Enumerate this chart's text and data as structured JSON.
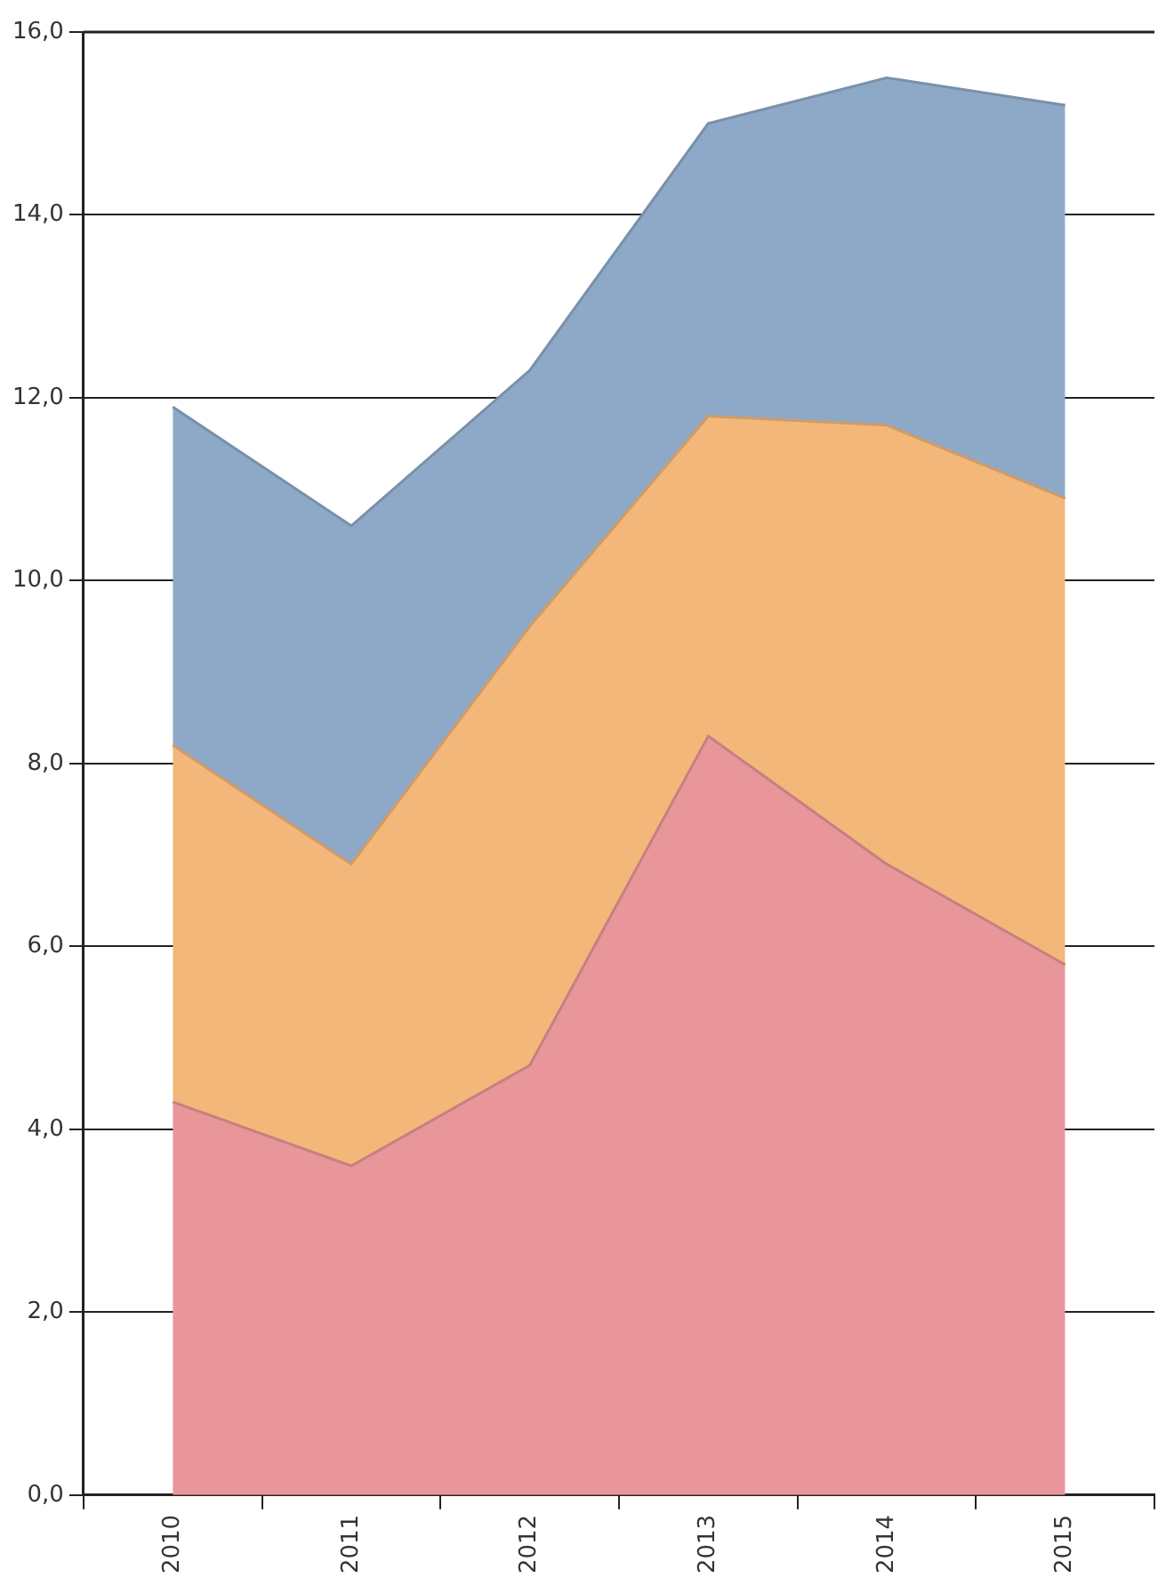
{
  "chart_data": {
    "type": "area",
    "stacked": true,
    "categories": [
      "2010",
      "2011",
      "2012",
      "2013",
      "2014",
      "2015"
    ],
    "series": [
      {
        "color": "#e8969a",
        "values": [
          4.3,
          3.6,
          4.7,
          8.3,
          6.9,
          5.8
        ]
      },
      {
        "color": "#f3b779",
        "values": [
          3.9,
          3.3,
          4.8,
          3.5,
          4.8,
          5.1
        ]
      },
      {
        "color": "#8ea9c8",
        "values": [
          3.7,
          3.7,
          2.8,
          3.2,
          3.8,
          4.3
        ]
      }
    ],
    "ylim": [
      0,
      16
    ],
    "yticks": [
      {
        "value": 0,
        "label": "0,0"
      },
      {
        "value": 2,
        "label": "2,0"
      },
      {
        "value": 4,
        "label": "4,0"
      },
      {
        "value": 6,
        "label": "6,0"
      },
      {
        "value": 8,
        "label": "8,0"
      },
      {
        "value": 10,
        "label": "10,0"
      },
      {
        "value": 12,
        "label": "12,0"
      },
      {
        "value": 14,
        "label": "14,0"
      },
      {
        "value": 16,
        "label": "16,0"
      }
    ],
    "grid": "y",
    "legend": false
  }
}
